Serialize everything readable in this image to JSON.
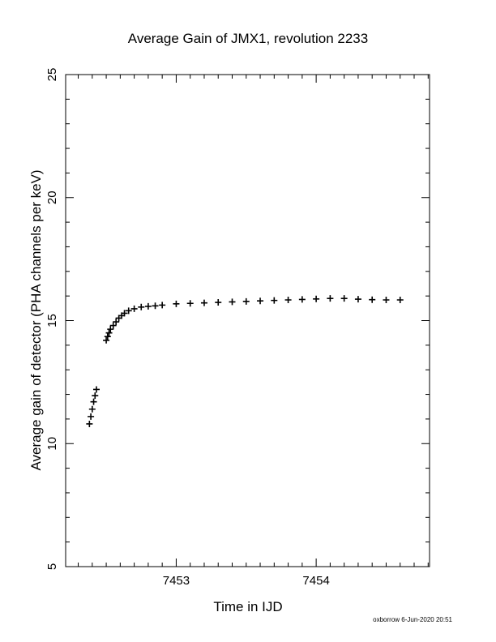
{
  "chart_data": {
    "type": "scatter",
    "title": "Average Gain of JMX1, revolution 2233",
    "xlabel": "Time in IJD",
    "ylabel": "Average gain of detector (PHA channels per keV)",
    "footer": "oxborrow  6-Jun-2020 20:51",
    "xlim": [
      7452.21,
      7454.81
    ],
    "ylim": [
      5,
      25
    ],
    "xticks": [
      7453,
      7454
    ],
    "yticks": [
      5,
      10,
      15,
      20,
      25
    ],
    "grid": false,
    "legend": "none",
    "marker": "plus",
    "color": "#000000",
    "series": [
      {
        "x": [
          7452.38,
          7452.39,
          7452.4,
          7452.41,
          7452.42,
          7452.43,
          7452.5,
          7452.51,
          7452.52,
          7452.53,
          7452.55,
          7452.57,
          7452.59,
          7452.61,
          7452.63,
          7452.66,
          7452.7,
          7452.75,
          7452.8,
          7452.85,
          7452.9,
          7453.0,
          7453.1,
          7453.2,
          7453.3,
          7453.4,
          7453.5,
          7453.6,
          7453.7,
          7453.8,
          7453.9,
          7454.0,
          7454.1,
          7454.2,
          7454.3,
          7454.4,
          7454.5,
          7454.6
        ],
        "y": [
          10.8,
          11.1,
          11.4,
          11.7,
          11.95,
          12.2,
          14.2,
          14.35,
          14.5,
          14.65,
          14.8,
          14.95,
          15.1,
          15.2,
          15.3,
          15.4,
          15.48,
          15.55,
          15.58,
          15.6,
          15.63,
          15.68,
          15.7,
          15.72,
          15.74,
          15.76,
          15.78,
          15.8,
          15.82,
          15.84,
          15.86,
          15.88,
          15.9,
          15.9,
          15.87,
          15.85,
          15.84,
          15.84
        ]
      }
    ]
  }
}
